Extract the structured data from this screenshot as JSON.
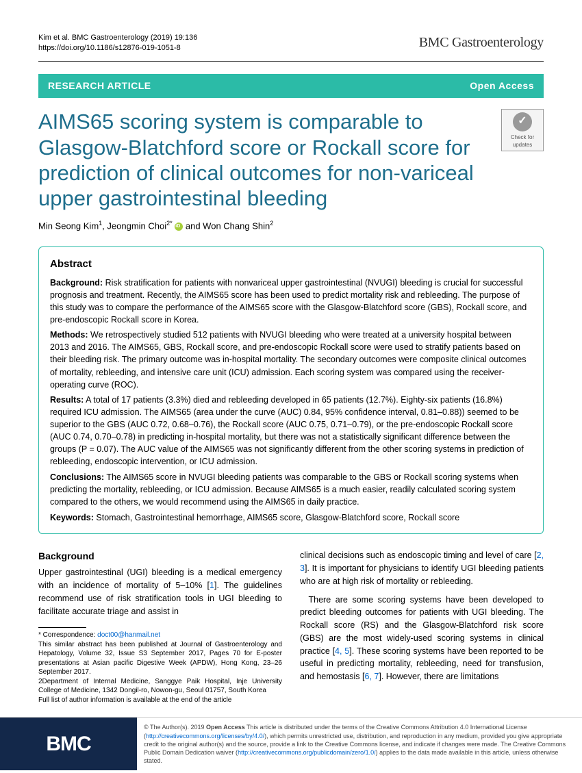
{
  "header": {
    "citation_line1": "Kim et al. BMC Gastroenterology          (2019) 19:136",
    "doi_label": "https://doi.org/10.1186/s12876-019-1051-8",
    "journal": "BMC Gastroenterology"
  },
  "banner": {
    "left": "RESEARCH ARTICLE",
    "right": "Open Access"
  },
  "title": "AIMS65 scoring system is comparable to Glasgow-Blatchford score or Rockall score for prediction of clinical outcomes for non-variceal upper gastrointestinal bleeding",
  "crossmark_label": "Check for updates",
  "authors_html": "Min Seong Kim<sup>1</sup>, Jeongmin Choi<sup>2*</sup> <span class='orcid' data-name='orcid-icon' data-interactable='false'></span> and Won Chang Shin<sup>2</sup>",
  "abstract": {
    "heading": "Abstract",
    "background_label": "Background:",
    "background": "Risk stratification for patients with nonvariceal upper gastrointestinal (NVUGI) bleeding is crucial for successful prognosis and treatment. Recently, the AIMS65 score has been used to predict mortality risk and rebleeding. The purpose of this study was to compare the performance of the AIMS65 score with the Glasgow-Blatchford score (GBS), Rockall score, and pre-endoscopic Rockall score in Korea.",
    "methods_label": "Methods:",
    "methods": "We retrospectively studied 512 patients with NVUGI bleeding who were treated at a university hospital between 2013 and 2016. The AIMS65, GBS, Rockall score, and pre-endoscopic Rockall score were used to stratify patients based on their bleeding risk. The primary outcome was in-hospital mortality. The secondary outcomes were composite clinical outcomes of mortality, rebleeding, and intensive care unit (ICU) admission. Each scoring system was compared using the receiver-operating curve (ROC).",
    "results_label": "Results:",
    "results": "A total of 17 patients (3.3%) died and rebleeding developed in 65 patients (12.7%). Eighty-six patients (16.8%) required ICU admission. The AIMS65 (area under the curve (AUC) 0.84, 95% confidence interval, 0.81–0.88)) seemed to be superior to the GBS (AUC 0.72, 0.68–0.76), the Rockall score (AUC 0.75, 0.71–0.79), or the pre-endoscopic Rockall score (AUC 0.74, 0.70–0.78) in predicting in-hospital mortality, but there was not a statistically significant difference between the groups (P = 0.07). The AUC value of the AIMS65 was not significantly different from the other scoring systems in prediction of rebleeding, endoscopic intervention, or ICU admission.",
    "conclusions_label": "Conclusions:",
    "conclusions": "The AIMS65 score in NVUGI bleeding patients was comparable to the GBS or Rockall scoring systems when predicting the mortality, rebleeding, or ICU admission. Because AIMS65 is a much easier, readily calculated scoring system compared to the others, we would recommend using the AIMS65 in daily practice.",
    "keywords_label": "Keywords:",
    "keywords": "Stomach, Gastrointestinal hemorrhage, AIMS65 score, Glasgow-Blatchford score, Rockall score"
  },
  "body": {
    "background_heading": "Background",
    "left_p1": "Upper gastrointestinal (UGI) bleeding is a medical emergency with an incidence of mortality of 5–10% [1]. The guidelines recommend use of risk stratification tools in UGI bleeding to facilitate accurate triage and assist in",
    "right_p1": "clinical decisions such as endoscopic timing and level of care [2, 3]. It is important for physicians to identify UGI bleeding patients who are at high risk of mortality or rebleeding.",
    "right_p2": "There are some scoring systems have been developed to predict bleeding outcomes for patients with UGI bleeding. The Rockall score (RS) and the Glasgow-Blatchford risk score (GBS) are the most widely-used scoring systems in clinical practice [4, 5]. These scoring systems have been reported to be useful in predicting mortality, rebleeding, need for transfusion, and hemostasis [6, 7]. However, there are limitations"
  },
  "footnote": {
    "correspondence_label": "* Correspondence:",
    "correspondence_email": "doct00@hanmail.net",
    "line1": "This similar abstract has been published at Journal of Gastroenterology and Hepatology, Volume 32, Issue S3 September 2017, Pages 70 for E-poster presentations at Asian pacific Digestive Week (APDW), Hong Kong, 23–26 September 2017.",
    "line2": "2Department of Internal Medicine, Sanggye Paik Hospital, Inje University College of Medicine, 1342 Dongil-ro, Nowon-gu, Seoul 01757, South Korea",
    "line3": "Full list of author information is available at the end of the article"
  },
  "footer": {
    "logo": "BMC",
    "license": "© The Author(s). 2019 Open Access This article is distributed under the terms of the Creative Commons Attribution 4.0 International License (http://creativecommons.org/licenses/by/4.0/), which permits unrestricted use, distribution, and reproduction in any medium, provided you give appropriate credit to the original author(s) and the source, provide a link to the Creative Commons license, and indicate if changes were made. The Creative Commons Public Domain Dedication waiver (http://creativecommons.org/publicdomain/zero/1.0/) applies to the data made available in this article, unless otherwise stated."
  },
  "colors": {
    "banner_bg": "#2bbba7",
    "title_color": "#1e6e8c",
    "link_color": "#0066cc",
    "footer_bg": "#13284a"
  }
}
